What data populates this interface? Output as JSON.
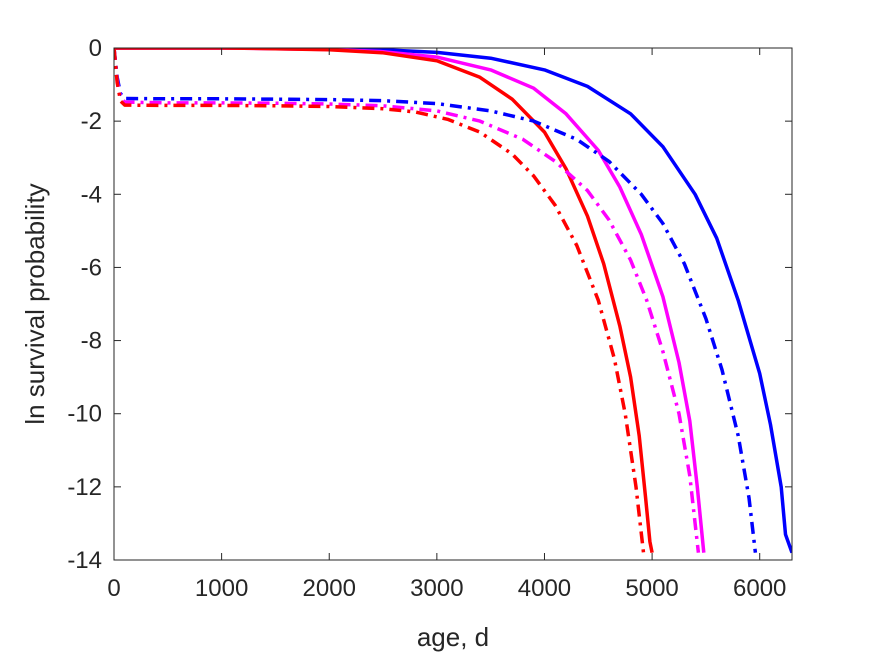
{
  "chart_data": {
    "type": "line",
    "xlabel": "age, d",
    "ylabel": "ln survival probability",
    "xlim": [
      0,
      6300
    ],
    "ylim": [
      -14,
      0
    ],
    "xticks": [
      0,
      1000,
      2000,
      3000,
      4000,
      5000,
      6000
    ],
    "xtick_labels": [
      "0",
      "1000",
      "2000",
      "3000",
      "4000",
      "5000",
      "6000"
    ],
    "yticks": [
      0,
      -2,
      -4,
      -6,
      -8,
      -10,
      -12,
      -14
    ],
    "ytick_labels": [
      "0",
      "-2",
      "-4",
      "-6",
      "-8",
      "-10",
      "-12",
      "-14"
    ],
    "grid": false,
    "legend": "none",
    "series": [
      {
        "color": "#0000ff",
        "style": "solid",
        "points": [
          [
            0,
            0
          ],
          [
            500,
            0
          ],
          [
            1000,
            0
          ],
          [
            1500,
            0
          ],
          [
            2000,
            -0.02
          ],
          [
            2500,
            -0.05
          ],
          [
            3000,
            -0.12
          ],
          [
            3500,
            -0.28
          ],
          [
            4000,
            -0.6
          ],
          [
            4400,
            -1.05
          ],
          [
            4800,
            -1.8
          ],
          [
            5100,
            -2.7
          ],
          [
            5400,
            -4.0
          ],
          [
            5600,
            -5.2
          ],
          [
            5800,
            -6.9
          ],
          [
            6000,
            -8.9
          ],
          [
            6100,
            -10.3
          ],
          [
            6200,
            -12.0
          ],
          [
            6240,
            -13.3
          ],
          [
            6300,
            -13.8
          ]
        ]
      },
      {
        "color": "#ff00ff",
        "style": "solid",
        "points": [
          [
            0,
            0
          ],
          [
            1000,
            0
          ],
          [
            1500,
            -0.02
          ],
          [
            2000,
            -0.04
          ],
          [
            2500,
            -0.1
          ],
          [
            3000,
            -0.25
          ],
          [
            3500,
            -0.6
          ],
          [
            3900,
            -1.1
          ],
          [
            4200,
            -1.8
          ],
          [
            4500,
            -2.8
          ],
          [
            4700,
            -3.8
          ],
          [
            4900,
            -5.1
          ],
          [
            5100,
            -6.8
          ],
          [
            5250,
            -8.6
          ],
          [
            5350,
            -10.2
          ],
          [
            5420,
            -12.0
          ],
          [
            5480,
            -13.8
          ]
        ]
      },
      {
        "color": "#ff0000",
        "style": "solid",
        "points": [
          [
            0,
            0
          ],
          [
            1000,
            0
          ],
          [
            1500,
            -0.02
          ],
          [
            2000,
            -0.05
          ],
          [
            2500,
            -0.13
          ],
          [
            3000,
            -0.35
          ],
          [
            3400,
            -0.8
          ],
          [
            3700,
            -1.4
          ],
          [
            4000,
            -2.3
          ],
          [
            4200,
            -3.3
          ],
          [
            4400,
            -4.6
          ],
          [
            4550,
            -5.9
          ],
          [
            4700,
            -7.6
          ],
          [
            4800,
            -9.0
          ],
          [
            4880,
            -10.6
          ],
          [
            4940,
            -12.3
          ],
          [
            4980,
            -13.5
          ],
          [
            5000,
            -13.8
          ]
        ]
      },
      {
        "color": "#0000ff",
        "style": "dashdot",
        "points": [
          [
            0,
            0
          ],
          [
            30,
            -0.8
          ],
          [
            60,
            -1.25
          ],
          [
            100,
            -1.38
          ],
          [
            500,
            -1.39
          ],
          [
            1000,
            -1.39
          ],
          [
            1500,
            -1.4
          ],
          [
            2000,
            -1.41
          ],
          [
            2500,
            -1.44
          ],
          [
            3000,
            -1.52
          ],
          [
            3500,
            -1.72
          ],
          [
            3900,
            -2.0
          ],
          [
            4300,
            -2.5
          ],
          [
            4600,
            -3.1
          ],
          [
            4900,
            -4.0
          ],
          [
            5100,
            -4.8
          ],
          [
            5300,
            -5.9
          ],
          [
            5500,
            -7.4
          ],
          [
            5650,
            -8.8
          ],
          [
            5800,
            -10.6
          ],
          [
            5900,
            -12.3
          ],
          [
            5960,
            -13.8
          ]
        ]
      },
      {
        "color": "#ff00ff",
        "style": "dashdot",
        "points": [
          [
            0,
            0
          ],
          [
            30,
            -0.9
          ],
          [
            60,
            -1.35
          ],
          [
            100,
            -1.48
          ],
          [
            500,
            -1.5
          ],
          [
            1000,
            -1.5
          ],
          [
            1500,
            -1.51
          ],
          [
            2000,
            -1.53
          ],
          [
            2500,
            -1.58
          ],
          [
            3000,
            -1.72
          ],
          [
            3400,
            -2.0
          ],
          [
            3800,
            -2.5
          ],
          [
            4100,
            -3.1
          ],
          [
            4400,
            -3.9
          ],
          [
            4600,
            -4.7
          ],
          [
            4800,
            -5.8
          ],
          [
            4950,
            -6.9
          ],
          [
            5100,
            -8.3
          ],
          [
            5250,
            -10.0
          ],
          [
            5350,
            -11.7
          ],
          [
            5400,
            -13.0
          ],
          [
            5430,
            -13.8
          ]
        ]
      },
      {
        "color": "#ff0000",
        "style": "dashdot",
        "points": [
          [
            0,
            0
          ],
          [
            30,
            -0.95
          ],
          [
            60,
            -1.45
          ],
          [
            100,
            -1.56
          ],
          [
            500,
            -1.57
          ],
          [
            1000,
            -1.57
          ],
          [
            1500,
            -1.58
          ],
          [
            2000,
            -1.6
          ],
          [
            2500,
            -1.66
          ],
          [
            2800,
            -1.75
          ],
          [
            3100,
            -1.95
          ],
          [
            3400,
            -2.3
          ],
          [
            3700,
            -2.9
          ],
          [
            3900,
            -3.5
          ],
          [
            4100,
            -4.3
          ],
          [
            4300,
            -5.4
          ],
          [
            4500,
            -6.9
          ],
          [
            4650,
            -8.5
          ],
          [
            4750,
            -10.0
          ],
          [
            4850,
            -12.0
          ],
          [
            4920,
            -13.8
          ]
        ]
      }
    ]
  }
}
